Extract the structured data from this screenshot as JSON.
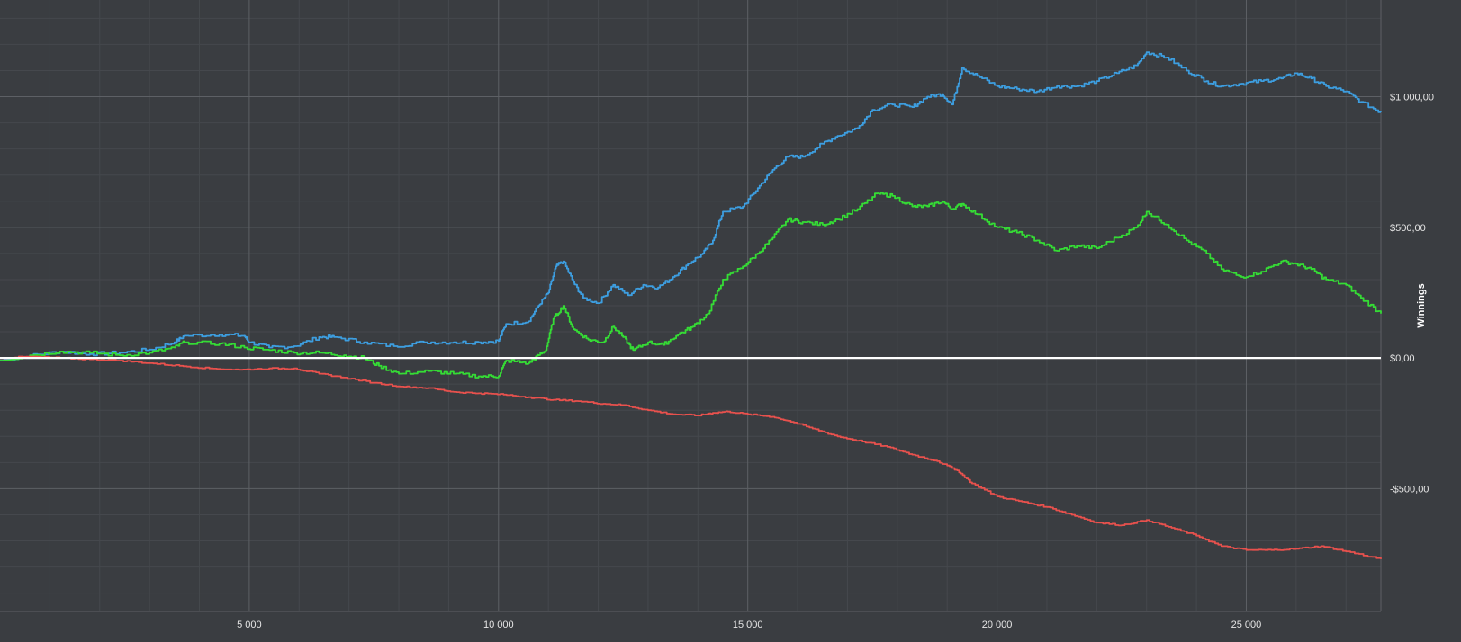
{
  "chart_data": {
    "type": "line",
    "title": "",
    "xlabel": "",
    "ylabel": "Winnings",
    "xlim": [
      0,
      27700
    ],
    "ylim": [
      -970,
      1370
    ],
    "grid": true,
    "legend": "none",
    "x_ticks": [
      {
        "value": 5000,
        "label": "5 000"
      },
      {
        "value": 10000,
        "label": "10 000"
      },
      {
        "value": 15000,
        "label": "15 000"
      },
      {
        "value": 20000,
        "label": "20 000"
      },
      {
        "value": 25000,
        "label": "25 000"
      }
    ],
    "y_ticks": [
      {
        "value": 1000,
        "label": "$1 000,00"
      },
      {
        "value": 500,
        "label": "$500,00"
      },
      {
        "value": 0,
        "label": "$0,00"
      },
      {
        "value": -500,
        "label": "-$500,00"
      }
    ],
    "series": [
      {
        "color": "#3d9ee0",
        "points": [
          [
            0,
            -10
          ],
          [
            600,
            8
          ],
          [
            1200,
            25
          ],
          [
            1800,
            15
          ],
          [
            2400,
            20
          ],
          [
            3000,
            32
          ],
          [
            3500,
            60
          ],
          [
            3700,
            85
          ],
          [
            4400,
            90
          ],
          [
            4900,
            85
          ],
          [
            5000,
            60
          ],
          [
            5400,
            40
          ],
          [
            5900,
            45
          ],
          [
            6400,
            80
          ],
          [
            6700,
            80
          ],
          [
            7300,
            60
          ],
          [
            7900,
            45
          ],
          [
            8500,
            60
          ],
          [
            9100,
            60
          ],
          [
            9600,
            60
          ],
          [
            10000,
            65
          ],
          [
            10150,
            130
          ],
          [
            10600,
            140
          ],
          [
            10800,
            200
          ],
          [
            11000,
            250
          ],
          [
            11150,
            350
          ],
          [
            11300,
            370
          ],
          [
            11500,
            290
          ],
          [
            11700,
            230
          ],
          [
            12000,
            210
          ],
          [
            12300,
            280
          ],
          [
            12600,
            240
          ],
          [
            12900,
            280
          ],
          [
            13200,
            270
          ],
          [
            13500,
            310
          ],
          [
            13800,
            360
          ],
          [
            14100,
            400
          ],
          [
            14300,
            450
          ],
          [
            14500,
            560
          ],
          [
            14900,
            580
          ],
          [
            15200,
            650
          ],
          [
            15500,
            720
          ],
          [
            15800,
            770
          ],
          [
            16100,
            770
          ],
          [
            16500,
            820
          ],
          [
            16800,
            850
          ],
          [
            17200,
            880
          ],
          [
            17500,
            950
          ],
          [
            17900,
            970
          ],
          [
            18300,
            960
          ],
          [
            18600,
            1000
          ],
          [
            18900,
            1010
          ],
          [
            19100,
            970
          ],
          [
            19300,
            1110
          ],
          [
            19600,
            1080
          ],
          [
            20000,
            1040
          ],
          [
            20400,
            1030
          ],
          [
            20800,
            1020
          ],
          [
            21200,
            1040
          ],
          [
            21600,
            1040
          ],
          [
            22000,
            1060
          ],
          [
            22400,
            1090
          ],
          [
            22800,
            1120
          ],
          [
            23000,
            1170
          ],
          [
            23400,
            1150
          ],
          [
            23800,
            1100
          ],
          [
            24200,
            1060
          ],
          [
            24500,
            1040
          ],
          [
            24900,
            1050
          ],
          [
            25300,
            1060
          ],
          [
            25700,
            1070
          ],
          [
            26000,
            1090
          ],
          [
            26300,
            1070
          ],
          [
            26600,
            1040
          ],
          [
            27000,
            1020
          ],
          [
            27300,
            980
          ],
          [
            27700,
            940
          ]
        ]
      },
      {
        "color": "#35dc35",
        "points": [
          [
            0,
            -10
          ],
          [
            600,
            10
          ],
          [
            1200,
            25
          ],
          [
            1800,
            20
          ],
          [
            2400,
            10
          ],
          [
            3000,
            20
          ],
          [
            3500,
            40
          ],
          [
            3700,
            60
          ],
          [
            4400,
            55
          ],
          [
            4900,
            40
          ],
          [
            5400,
            30
          ],
          [
            5900,
            20
          ],
          [
            6400,
            20
          ],
          [
            6900,
            10
          ],
          [
            7300,
            0
          ],
          [
            7600,
            -30
          ],
          [
            8000,
            -60
          ],
          [
            8600,
            -50
          ],
          [
            9100,
            -60
          ],
          [
            9600,
            -70
          ],
          [
            10000,
            -70
          ],
          [
            10150,
            -10
          ],
          [
            10600,
            -20
          ],
          [
            10800,
            10
          ],
          [
            10950,
            30
          ],
          [
            11100,
            150
          ],
          [
            11300,
            200
          ],
          [
            11500,
            110
          ],
          [
            11800,
            70
          ],
          [
            12100,
            60
          ],
          [
            12300,
            120
          ],
          [
            12500,
            80
          ],
          [
            12700,
            30
          ],
          [
            13000,
            60
          ],
          [
            13300,
            50
          ],
          [
            13600,
            90
          ],
          [
            13900,
            120
          ],
          [
            14200,
            170
          ],
          [
            14500,
            300
          ],
          [
            14900,
            350
          ],
          [
            15200,
            400
          ],
          [
            15500,
            460
          ],
          [
            15800,
            530
          ],
          [
            16100,
            520
          ],
          [
            16500,
            510
          ],
          [
            16800,
            530
          ],
          [
            17200,
            570
          ],
          [
            17600,
            630
          ],
          [
            17900,
            620
          ],
          [
            18300,
            580
          ],
          [
            18600,
            580
          ],
          [
            18900,
            600
          ],
          [
            19100,
            570
          ],
          [
            19300,
            590
          ],
          [
            19600,
            550
          ],
          [
            20000,
            500
          ],
          [
            20400,
            480
          ],
          [
            20800,
            450
          ],
          [
            21200,
            410
          ],
          [
            21600,
            430
          ],
          [
            22000,
            420
          ],
          [
            22400,
            460
          ],
          [
            22800,
            500
          ],
          [
            23000,
            560
          ],
          [
            23400,
            510
          ],
          [
            23800,
            450
          ],
          [
            24200,
            400
          ],
          [
            24500,
            340
          ],
          [
            24900,
            310
          ],
          [
            25300,
            330
          ],
          [
            25700,
            370
          ],
          [
            26000,
            360
          ],
          [
            26300,
            340
          ],
          [
            26600,
            300
          ],
          [
            27000,
            280
          ],
          [
            27300,
            230
          ],
          [
            27700,
            170
          ]
        ]
      },
      {
        "color": "#e8514d",
        "points": [
          [
            0,
            0
          ],
          [
            600,
            5
          ],
          [
            1200,
            0
          ],
          [
            1800,
            -5
          ],
          [
            2400,
            -10
          ],
          [
            3000,
            -20
          ],
          [
            3600,
            -30
          ],
          [
            4200,
            -40
          ],
          [
            4800,
            -45
          ],
          [
            5400,
            -40
          ],
          [
            5900,
            -40
          ],
          [
            6400,
            -60
          ],
          [
            6900,
            -75
          ],
          [
            7500,
            -95
          ],
          [
            8100,
            -110
          ],
          [
            8600,
            -115
          ],
          [
            9100,
            -130
          ],
          [
            9600,
            -135
          ],
          [
            10100,
            -140
          ],
          [
            10600,
            -150
          ],
          [
            11100,
            -160
          ],
          [
            11600,
            -165
          ],
          [
            12100,
            -175
          ],
          [
            12500,
            -180
          ],
          [
            13000,
            -200
          ],
          [
            13500,
            -215
          ],
          [
            14000,
            -220
          ],
          [
            14300,
            -210
          ],
          [
            14600,
            -205
          ],
          [
            15000,
            -215
          ],
          [
            15500,
            -225
          ],
          [
            15800,
            -240
          ],
          [
            16300,
            -270
          ],
          [
            16800,
            -300
          ],
          [
            17300,
            -320
          ],
          [
            17800,
            -340
          ],
          [
            18300,
            -370
          ],
          [
            18800,
            -395
          ],
          [
            19200,
            -430
          ],
          [
            19500,
            -480
          ],
          [
            20000,
            -530
          ],
          [
            20500,
            -550
          ],
          [
            21000,
            -570
          ],
          [
            21500,
            -600
          ],
          [
            22000,
            -630
          ],
          [
            22500,
            -640
          ],
          [
            23000,
            -620
          ],
          [
            23500,
            -650
          ],
          [
            24000,
            -680
          ],
          [
            24500,
            -720
          ],
          [
            25000,
            -735
          ],
          [
            25500,
            -735
          ],
          [
            26000,
            -730
          ],
          [
            26500,
            -720
          ],
          [
            27000,
            -740
          ],
          [
            27700,
            -770
          ]
        ]
      }
    ]
  }
}
